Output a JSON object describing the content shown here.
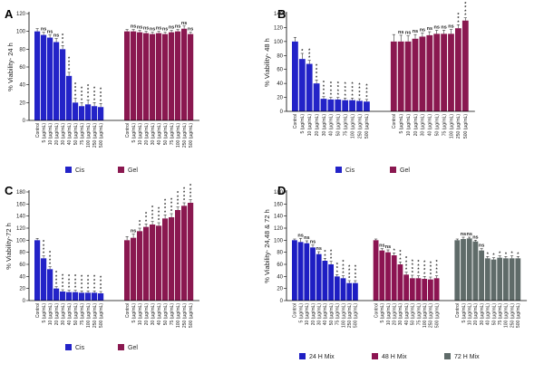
{
  "colors": {
    "cis": "#2323c8",
    "gel": "#8a1850",
    "mix24": "#1e1ec3",
    "mix48": "#8c1452",
    "mix72": "#5f6b69"
  },
  "chart_data": [
    {
      "panel": "A",
      "type": "bar",
      "ylabel": "% Viability- 24 h",
      "ylim": [
        0,
        120
      ],
      "yticks": [
        0,
        20,
        40,
        60,
        80,
        100,
        120
      ],
      "categories": [
        "Control",
        "5 (µg/mL)",
        "10 (µg/mL)",
        "20 (µg/mL)",
        "30 (µg/mL)",
        "40 (µg/mL)",
        "50 (µg/mL)",
        "75 (µg/mL)",
        "100 (µg/mL)",
        "250 (µg/mL)",
        "500 (µg/mL)"
      ],
      "legend": [
        "Cis",
        "Gel"
      ],
      "series": [
        {
          "name": "Cis",
          "color": "#2323c8",
          "values": [
            100,
            96,
            93,
            88,
            80,
            50,
            20,
            16,
            18,
            16,
            15
          ],
          "errors": [
            3,
            3,
            3,
            4,
            4,
            4,
            5,
            4,
            5,
            4,
            4
          ],
          "sig": [
            "",
            "ns",
            "ns",
            "ns",
            "***",
            "****",
            "****",
            "****",
            "****",
            "****",
            "****"
          ]
        },
        {
          "name": "Gel",
          "color": "#8a1850",
          "values": [
            100,
            100,
            99,
            98,
            97,
            98,
            97,
            99,
            100,
            103,
            97
          ],
          "errors": [
            2,
            2,
            2,
            2,
            2,
            2,
            2,
            2,
            2,
            3,
            2
          ],
          "sig": [
            "",
            "ns",
            "ns",
            "ns",
            "ns",
            "ns",
            "ns",
            "ns",
            "ns",
            "ns",
            "ns"
          ]
        }
      ]
    },
    {
      "panel": "B",
      "type": "bar",
      "ylabel": "% Viability- 48 h",
      "ylim": [
        0,
        140
      ],
      "yticks": [
        0,
        20,
        40,
        60,
        80,
        100,
        120,
        140
      ],
      "categories": [
        "Control",
        "5 (µg/mL)",
        "10 (µg/mL)",
        "20 (µg/mL)",
        "30 (µg/mL)",
        "40 (µg/mL)",
        "50 (µg/mL)",
        "75 (µg/mL)",
        "100 (µg/mL)",
        "250 (µg/mL)",
        "500 (µg/mL)"
      ],
      "legend": [
        "Cis",
        "Gel"
      ],
      "series": [
        {
          "name": "Cis",
          "color": "#2323c8",
          "values": [
            100,
            75,
            68,
            40,
            18,
            17,
            17,
            16,
            16,
            15,
            14
          ],
          "errors": [
            6,
            8,
            5,
            5,
            3,
            3,
            3,
            3,
            3,
            3,
            3
          ],
          "sig": [
            "",
            "*",
            "***",
            "****",
            "****",
            "****",
            "****",
            "****",
            "****",
            "****",
            "****"
          ]
        },
        {
          "name": "Gel",
          "color": "#8a1850",
          "values": [
            100,
            100,
            100,
            104,
            107,
            109,
            111,
            111,
            111,
            119,
            130
          ],
          "errors": [
            10,
            9,
            8,
            6,
            5,
            5,
            5,
            5,
            6,
            5,
            4
          ],
          "sig": [
            "",
            "ns",
            "ns",
            "ns",
            "ns",
            "ns",
            "ns",
            "ns",
            "ns",
            "***",
            "****"
          ]
        }
      ]
    },
    {
      "panel": "C",
      "type": "bar",
      "ylabel": "% Viability-72 h",
      "ylim": [
        0,
        180
      ],
      "yticks": [
        0,
        20,
        40,
        60,
        80,
        100,
        120,
        140,
        160,
        180
      ],
      "categories": [
        "Control",
        "5 (µg/mL)",
        "10 (µg/mL)",
        "20 (µg/mL)",
        "30 (µg/mL)",
        "40 (µg/mL)",
        "50 (µg/mL)",
        "75 (µg/mL)",
        "100 (µg/mL)",
        "250 (µg/mL)",
        "500 (µg/mL)"
      ],
      "legend": [
        "Cis",
        "Gel"
      ],
      "series": [
        {
          "name": "Cis",
          "color": "#2323c8",
          "values": [
            100,
            70,
            52,
            20,
            15,
            14,
            14,
            13,
            13,
            13,
            12
          ],
          "errors": [
            3,
            4,
            4,
            3,
            3,
            3,
            3,
            3,
            3,
            3,
            3
          ],
          "sig": [
            "",
            "****",
            "****",
            "****",
            "****",
            "****",
            "****",
            "****",
            "****",
            "****",
            "****"
          ]
        },
        {
          "name": "Gel",
          "color": "#8a1850",
          "values": [
            100,
            104,
            115,
            122,
            126,
            124,
            136,
            138,
            150,
            157,
            162
          ],
          "errors": [
            6,
            6,
            5,
            5,
            5,
            5,
            6,
            6,
            5,
            5,
            5
          ],
          "sig": [
            "",
            "ns",
            "**",
            "***",
            "****",
            "****",
            "****",
            "****",
            "****",
            "****",
            "****"
          ]
        }
      ]
    },
    {
      "panel": "D",
      "type": "bar",
      "ylabel": "% Viability- 24,48 & 72 h",
      "ylim": [
        0,
        180
      ],
      "yticks": [
        0,
        20,
        40,
        60,
        80,
        100,
        120,
        140,
        160,
        180
      ],
      "categories": [
        "Control",
        "5 (µg/mL)",
        "10 (µg/mL)",
        "20 (µg/mL)",
        "30 (µg/mL)",
        "40 (µg/mL)",
        "50 (µg/mL)",
        "75 (µg/mL)",
        "100 (µg/mL)",
        "250 (µg/mL)",
        "500 (µg/mL)"
      ],
      "legend": [
        "24 H Mix",
        "48 H Mix",
        "72 H Mix"
      ],
      "series": [
        {
          "name": "24 H Mix",
          "color": "#1e1ec3",
          "values": [
            100,
            97,
            95,
            88,
            77,
            66,
            60,
            40,
            37,
            29,
            29
          ],
          "errors": [
            2,
            6,
            4,
            4,
            4,
            4,
            5,
            3,
            4,
            4,
            4
          ],
          "sig": [
            "",
            "ns",
            "ns",
            "ns",
            "ns",
            "**",
            "***",
            "***",
            "****",
            "****",
            "****"
          ]
        },
        {
          "name": "48 H Mix",
          "color": "#8c1452",
          "values": [
            100,
            83,
            80,
            75,
            60,
            43,
            37,
            37,
            36,
            35,
            37
          ],
          "errors": [
            2,
            3,
            4,
            4,
            4,
            4,
            5,
            4,
            4,
            4,
            4
          ],
          "sig": [
            "",
            "ns",
            "ns",
            "*",
            "***",
            "****",
            "****",
            "****",
            "****",
            "****",
            "****"
          ]
        },
        {
          "name": "72 H Mix",
          "color": "#5f6b69",
          "values": [
            100,
            102,
            103,
            98,
            83,
            70,
            68,
            71,
            70,
            70,
            70
          ],
          "errors": [
            2,
            3,
            2,
            2,
            3,
            3,
            3,
            3,
            3,
            4,
            3
          ],
          "sig": [
            "",
            "ns",
            "ns",
            "ns",
            "ns",
            "*",
            "*",
            "*",
            "*",
            "*",
            "*"
          ]
        }
      ]
    }
  ]
}
